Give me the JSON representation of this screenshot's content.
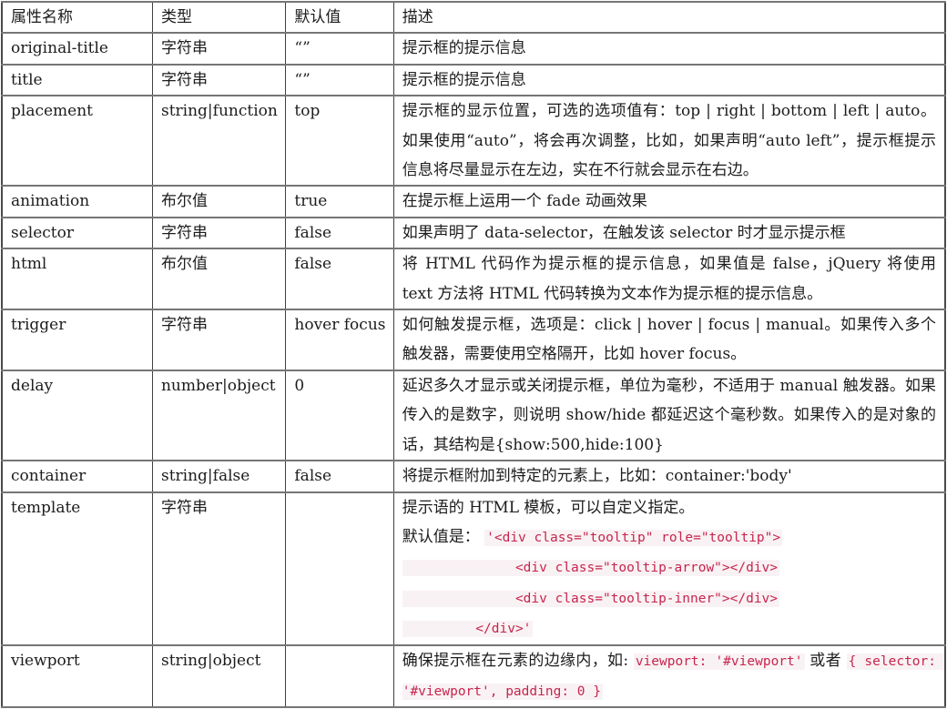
{
  "colors": {
    "code_text": "#c7254e",
    "code_background": "#f9f2f4",
    "grid_line": "#757575",
    "text": "#1c1c1c"
  },
  "table": {
    "columns": [
      "属性名称",
      "类型",
      "默认值",
      "描述"
    ],
    "rows": [
      {
        "name": "original-title",
        "type": "字符串",
        "default": "“”",
        "description": [
          [
            {
              "v": "提示框的提示信息"
            }
          ]
        ]
      },
      {
        "name": "title",
        "type": "字符串",
        "default": "“”",
        "description": [
          [
            {
              "v": "提示框的提示信息"
            }
          ]
        ]
      },
      {
        "name": "placement",
        "type": "string|function",
        "default": "top",
        "description": [
          [
            {
              "v": "提示框的显示位置，可选的选项值有：top | right | bottom | left | auto。如果使用“auto”，将会再次调整，比如，如果声明“auto left”，提示框提示信息将尽量显示在左边，实在不行就会显示在右边。"
            }
          ]
        ]
      },
      {
        "name": "animation",
        "type": "布尔值",
        "default": "true",
        "description": [
          [
            {
              "v": "在提示框上运用一个 fade 动画效果"
            }
          ]
        ]
      },
      {
        "name": "selector",
        "type": "字符串",
        "default": "false",
        "description": [
          [
            {
              "v": "如果声明了 data-selector，在触发该 selector 时才显示提示框"
            }
          ]
        ]
      },
      {
        "name": "html",
        "type": "布尔值",
        "default": "false",
        "description": [
          [
            {
              "v": "将 HTML 代码作为提示框的提示信息，如果值是 false，jQuery 将使用 text 方法将 HTML 代码转换为文本作为提示框的提示信息。"
            }
          ]
        ]
      },
      {
        "name": "trigger",
        "type": "字符串",
        "default": "hover focus",
        "description": [
          [
            {
              "v": "如何触发提示框，选项是：click | hover | focus | manual。如果传入多个触发器，需要使用空格隔开，比如 hover focus。"
            }
          ]
        ]
      },
      {
        "name": "delay",
        "type": "number|object",
        "default": "0",
        "description": [
          [
            {
              "v": "延迟多久才显示或关闭提示框，单位为毫秒，不适用于 manual 触发器。如果传入的是数字，则说明 show/hide 都延迟这个毫秒数。如果传入的是对象的话，其结构是{show:500,hide:100}"
            }
          ]
        ]
      },
      {
        "name": "container",
        "type": "string|false",
        "default": "false",
        "description": [
          [
            {
              "v": "将提示框附加到特定的元素上，比如：container:'body'"
            }
          ]
        ]
      },
      {
        "name": "template",
        "type": "字符串",
        "default": "",
        "description": [
          [
            {
              "v": "提示语的 HTML 模板，可以自定义指定。"
            }
          ],
          [
            {
              "v": "默认值是： "
            },
            {
              "code": true,
              "v": "'<div class=\"tooltip\" role=\"tooltip\">"
            }
          ],
          [
            {
              "code": true,
              "v": "              <div class=\"tooltip-arrow\"></div>"
            }
          ],
          [
            {
              "code": true,
              "v": "              <div class=\"tooltip-inner\"></div>"
            }
          ],
          [
            {
              "code": true,
              "v": "         </div>'"
            }
          ]
        ]
      },
      {
        "name": "viewport",
        "type": "string|object",
        "default": "",
        "description": [
          [
            {
              "v": "确保提示框在元素的边缘内，如: "
            },
            {
              "code": true,
              "v": "viewport: '#viewport'"
            },
            {
              "v": " 或者 "
            },
            {
              "code": true,
              "v": "{ selector: '#viewport', padding: 0 }"
            }
          ]
        ]
      }
    ]
  }
}
